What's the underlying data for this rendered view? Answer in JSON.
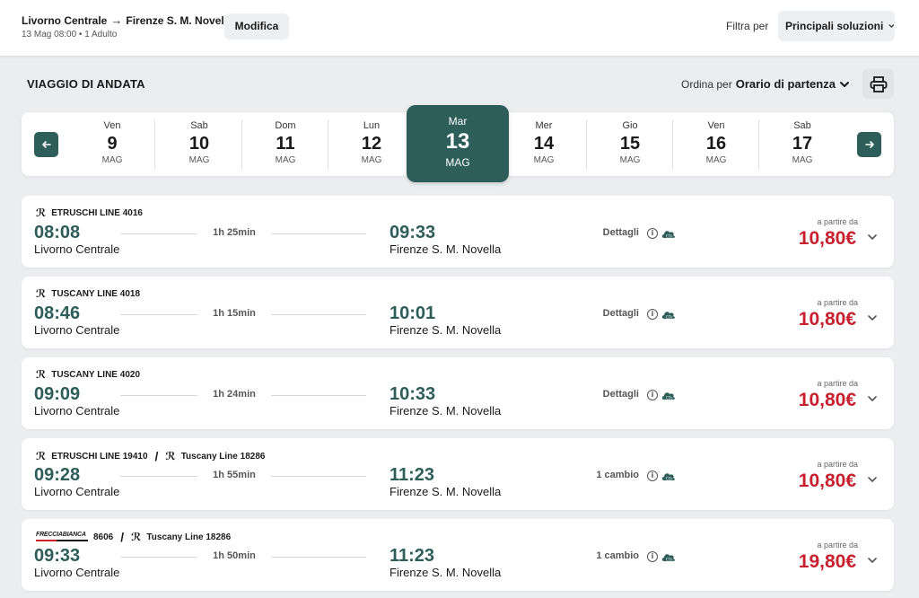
{
  "header": {
    "origin": "Livorno Centrale",
    "destination": "Firenze S. M. Novella",
    "subinfo": "13 Mag 08:00 • 1 Adulto",
    "modify_label": "Modifica",
    "filter_label": "Filtra per",
    "filter_value": "Principali soluzioni"
  },
  "section": {
    "title": "VIAGGIO DI ANDATA",
    "sort_label": "Ordina per",
    "sort_value": "Orario di partenza"
  },
  "dates": [
    {
      "dow": "Ven",
      "num": "9",
      "mon": "MAG"
    },
    {
      "dow": "Sab",
      "num": "10",
      "mon": "MAG"
    },
    {
      "dow": "Dom",
      "num": "11",
      "mon": "MAG"
    },
    {
      "dow": "Lun",
      "num": "12",
      "mon": "MAG"
    },
    {
      "dow": "Mar",
      "num": "13",
      "mon": "MAG",
      "selected": true
    },
    {
      "dow": "Mer",
      "num": "14",
      "mon": "MAG"
    },
    {
      "dow": "Gio",
      "num": "15",
      "mon": "MAG"
    },
    {
      "dow": "Ven",
      "num": "16",
      "mon": "MAG"
    },
    {
      "dow": "Sab",
      "num": "17",
      "mon": "MAG"
    }
  ],
  "solutions": [
    {
      "train": "ETRUSCHI LINE 4016",
      "train2": "",
      "dep_time": "08:08",
      "dep_station": "Livorno Centrale",
      "duration": "1h 25min",
      "arr_time": "09:33",
      "arr_station": "Firenze S. M. Novella",
      "details": "Dettagli",
      "from_label": "a partire da",
      "price": "10,80€"
    },
    {
      "train": "TUSCANY LINE 4018",
      "train2": "",
      "dep_time": "08:46",
      "dep_station": "Livorno Centrale",
      "duration": "1h 15min",
      "arr_time": "10:01",
      "arr_station": "Firenze S. M. Novella",
      "details": "Dettagli",
      "from_label": "a partire da",
      "price": "10,80€"
    },
    {
      "train": "TUSCANY LINE 4020",
      "train2": "",
      "dep_time": "09:09",
      "dep_station": "Livorno Centrale",
      "duration": "1h 24min",
      "arr_time": "10:33",
      "arr_station": "Firenze S. M. Novella",
      "details": "Dettagli",
      "from_label": "a partire da",
      "price": "10,80€"
    },
    {
      "train": "ETRUSCHI LINE 19410",
      "train2": "Tuscany Line 18286",
      "dep_time": "09:28",
      "dep_station": "Livorno Centrale",
      "duration": "1h 55min",
      "arr_time": "11:23",
      "arr_station": "Firenze S. M. Novella",
      "details": "1 cambio",
      "from_label": "a partire da",
      "price": "10,80€"
    },
    {
      "train": "8606",
      "train_brand": "FRECCIABIANCA",
      "train2": "Tuscany Line 18286",
      "dep_time": "09:33",
      "dep_station": "Livorno Centrale",
      "duration": "1h 50min",
      "arr_time": "11:23",
      "arr_station": "Firenze S. M. Novella",
      "details": "1 cambio",
      "from_label": "a partire da",
      "price": "19,80€"
    }
  ],
  "colors": {
    "accent": "#2e5e5a",
    "price": "#c8202e"
  }
}
